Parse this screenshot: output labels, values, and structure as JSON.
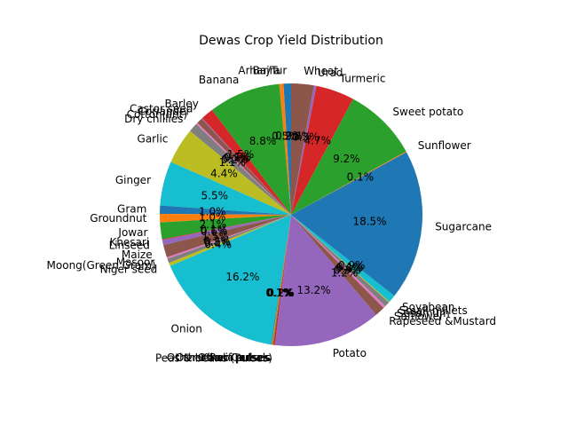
{
  "chart_data": {
    "type": "pie",
    "title": "Dewas Crop Yield Distribution",
    "start_angle_deg": 90,
    "direction": "counterclockwise",
    "autopct": "%1.1f%%",
    "labels": [
      "Arhar/Tur",
      "Bajra",
      "Banana",
      "Barley",
      "Castor seed",
      "Coriander",
      "Cotton(lint)",
      "Dry chillies",
      "Garlic",
      "Ginger",
      "Gram",
      "Groundnut",
      "Jowar",
      "Khesari",
      "Linseed",
      "Maize",
      "Masoor",
      "Moong(Green Gram)",
      "Niger seed",
      "Onion",
      "Other Kharif pulses",
      "Other Rabi pulses",
      "Other Cereals",
      "Peas & beans (Pulses)",
      "Potato",
      "Rapeseed &Mustard",
      "Safflower",
      "Sesamum",
      "Small millets",
      "Soyabean",
      "Sugarcane",
      "Sunflower",
      "Sweet potato",
      "Turmeric",
      "Urad",
      "Wheat"
    ],
    "values": [
      0.9,
      0.5,
      8.6,
      1.5,
      0.1,
      0.7,
      0.2,
      1.1,
      4.3,
      5.3,
      1.0,
      1.0,
      2.0,
      0.1,
      0.6,
      1.5,
      0.2,
      0.5,
      0.4,
      15.7,
      0.1,
      0.1,
      0.1,
      0.2,
      12.8,
      1.2,
      0.3,
      0.6,
      0.1,
      0.9,
      18.0,
      0.1,
      8.9,
      4.6,
      0.3,
      2.7
    ],
    "colors": [
      "#1f77b4",
      "#ff7f0e",
      "#2ca02c",
      "#d62728",
      "#9467bd",
      "#8c564b",
      "#e377c2",
      "#7f7f7f",
      "#bcbd22",
      "#17becf",
      "#1f77b4",
      "#ff7f0e",
      "#2ca02c",
      "#d62728",
      "#9467bd",
      "#8c564b",
      "#e377c2",
      "#7f7f7f",
      "#bcbd22",
      "#17becf",
      "#1f77b4",
      "#ff7f0e",
      "#2ca02c",
      "#d62728",
      "#9467bd",
      "#8c564b",
      "#e377c2",
      "#7f7f7f",
      "#bcbd22",
      "#17becf",
      "#1f77b4",
      "#ff7f0e",
      "#2ca02c",
      "#d62728",
      "#9467bd",
      "#8c564b"
    ]
  }
}
